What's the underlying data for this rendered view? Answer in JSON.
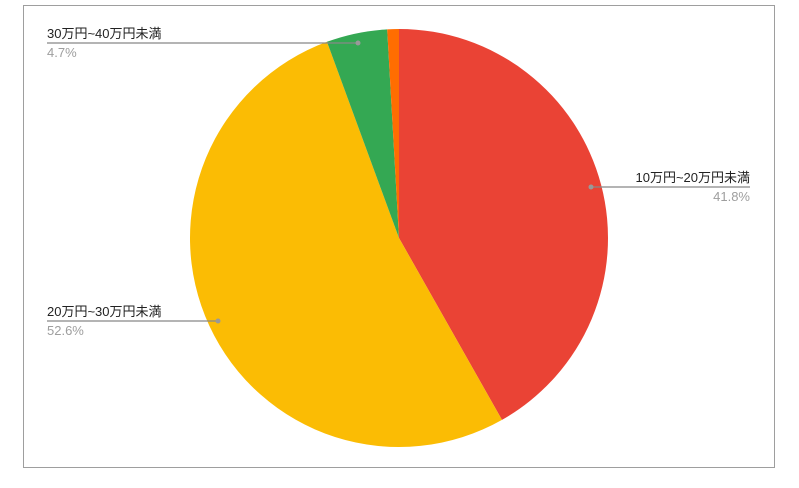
{
  "chart_data": {
    "type": "pie",
    "title": "",
    "start_angle_deg": 0,
    "direction": "clockwise",
    "slices": [
      {
        "label": "10万円~20万円未満",
        "value": 41.8,
        "value_label": "41.8%",
        "color": "#ea4335"
      },
      {
        "label": "20万円~30万円未満",
        "value": 52.6,
        "value_label": "52.6%",
        "color": "#fbbc04"
      },
      {
        "label": "30万円~40万円未満",
        "value": 4.7,
        "value_label": "4.7%",
        "color": "#34a853"
      },
      {
        "label": "",
        "value": 0.9,
        "value_label": "",
        "color": "#ff6d01"
      }
    ],
    "legend": "labels-with-leader-lines"
  }
}
